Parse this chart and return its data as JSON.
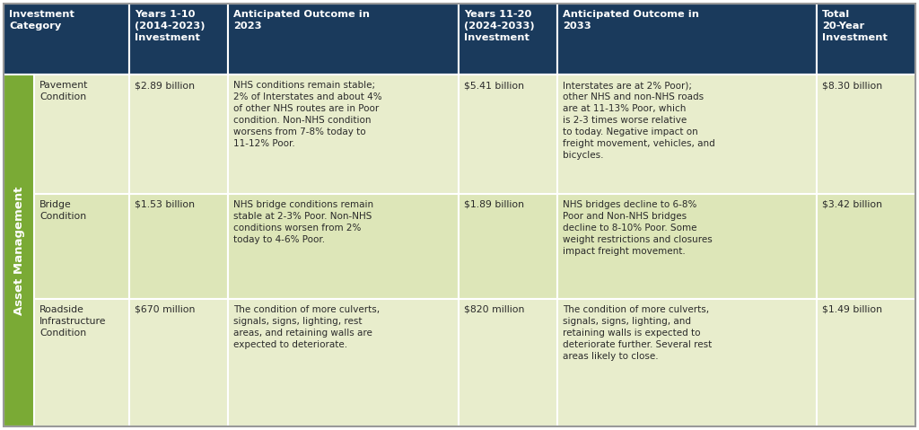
{
  "header_bg": "#1a3a5c",
  "header_text_color": "#ffffff",
  "row_bg_even": "#e8edcc",
  "row_bg_odd": "#dde6b8",
  "sidebar_bg": "#7aaa35",
  "sidebar_text": "Asset Management",
  "border_color": "#ffffff",
  "body_text_color": "#2a2a2a",
  "fig_w": 10.24,
  "fig_h": 4.79,
  "dpi": 100,
  "headers": [
    "Investment\nCategory",
    "Years 1-10\n(2014-2023)\nInvestment",
    "Anticipated Outcome in\n2023",
    "Years 11-20\n(2024-2033)\nInvestment",
    "Anticipated Outcome in\n2033",
    "Total\n20-Year\nInvestment"
  ],
  "rows": [
    {
      "category": "Pavement\nCondition",
      "inv1": "$2.89 billion",
      "outcome1": "NHS conditions remain stable;\n2% of Interstates and about 4%\nof other NHS routes are in Poor\ncondition. Non-NHS condition\nworsens from 7-8% today to\n11-12% Poor.",
      "inv2": "$5.41 billion",
      "outcome2": "Interstates are at 2% Poor);\nother NHS and non-NHS roads\nare at 11-13% Poor, which\nis 2-3 times worse relative\nto today. Negative impact on\nfreight movement, vehicles, and\nbicycles.",
      "total": "$8.30 billion"
    },
    {
      "category": "Bridge\nCondition",
      "inv1": "$1.53 billion",
      "outcome1": "NHS bridge conditions remain\nstable at 2-3% Poor. Non-NHS\nconditions worsen from 2%\ntoday to 4-6% Poor.",
      "inv2": "$1.89 billion",
      "outcome2": "NHS bridges decline to 6-8%\nPoor and Non-NHS bridges\ndecline to 8-10% Poor. Some\nweight restrictions and closures\nimpact freight movement.",
      "total": "$3.42 billion"
    },
    {
      "category": "Roadside\nInfrastructure\nCondition",
      "inv1": "$670 million",
      "outcome1": "The condition of more culverts,\nsignals, signs, lighting, rest\nareas, and retaining walls are\nexpected to deteriorate.",
      "inv2": "$820 million",
      "outcome2": "The condition of more culverts,\nsignals, signs, lighting, and\nretaining walls is expected to\ndeteriorate further. Several rest\nareas likely to close.",
      "total": "$1.49 billion"
    }
  ]
}
